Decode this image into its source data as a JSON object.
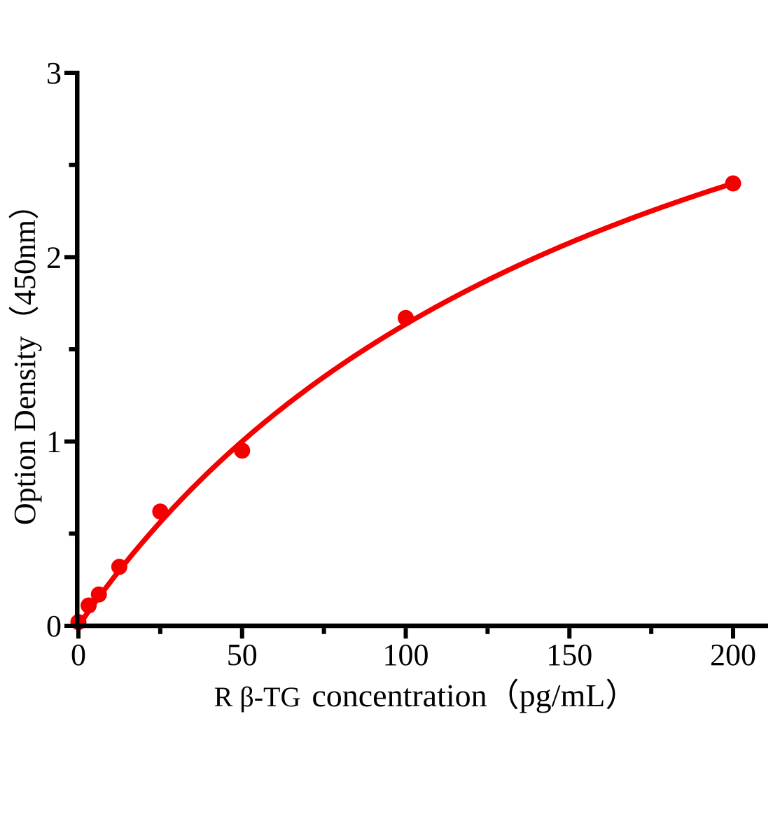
{
  "chart_data": {
    "type": "scatter",
    "title": "",
    "xlabel_prefix": "R β-TG",
    "xlabel_main": "concentration（pg/mL）",
    "ylabel": "Option Density（450nm）",
    "x": [
      0,
      3.125,
      6.25,
      12.5,
      25,
      50,
      100,
      200
    ],
    "y": [
      0.02,
      0.11,
      0.17,
      0.32,
      0.62,
      0.95,
      1.67,
      2.4
    ],
    "xlim": [
      0,
      210
    ],
    "ylim": [
      0,
      3
    ],
    "x_major_ticks": [
      0,
      50,
      100,
      150,
      200
    ],
    "x_minor_ticks": [
      25,
      75,
      125,
      175
    ],
    "y_major_ticks": [
      0,
      1,
      2,
      3
    ],
    "y_minor_ticks": [
      0.5,
      1.5,
      2.5
    ],
    "curve_fit": {
      "model": "michaelis_menten",
      "vmax": 4.5,
      "km": 175
    },
    "grid": false,
    "legend": null,
    "colors": {
      "curve": "#f40000",
      "marker": "#f40000",
      "axis": "#000000",
      "text": "#000000",
      "background": "#ffffff"
    }
  }
}
